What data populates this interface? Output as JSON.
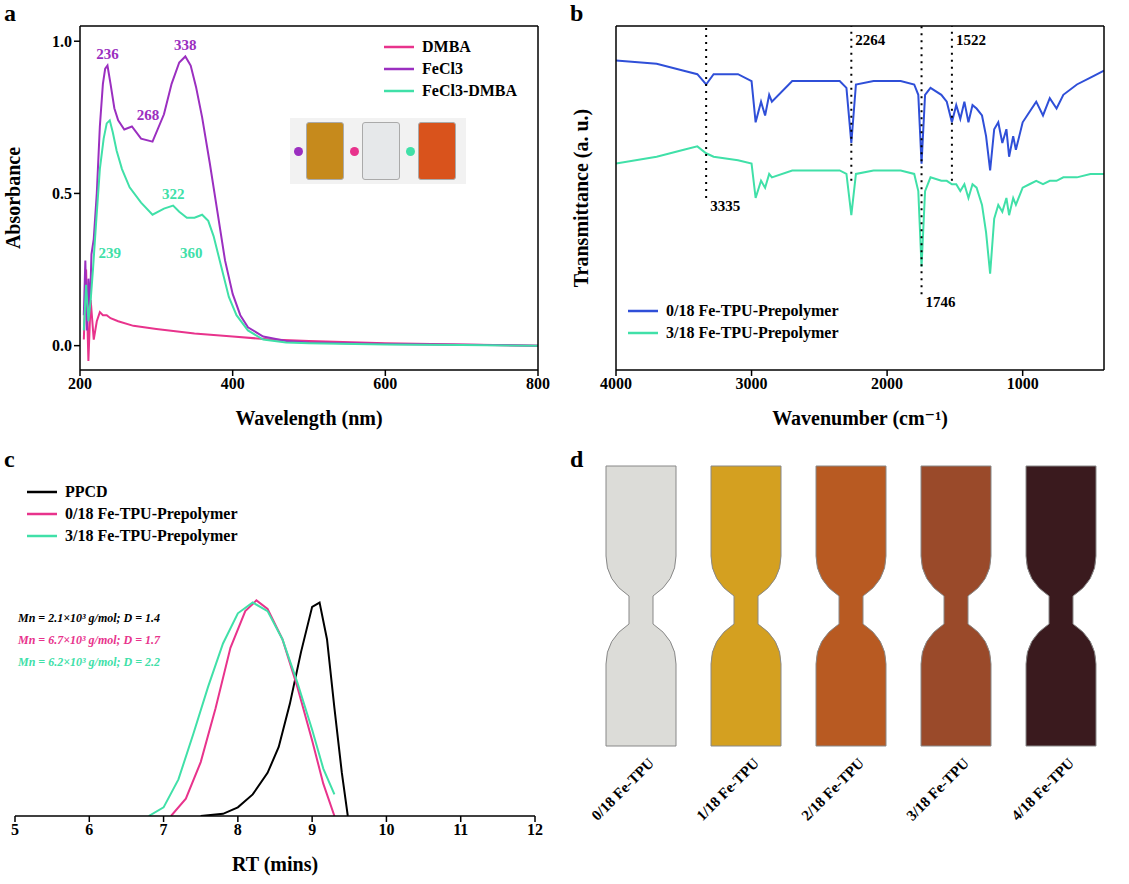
{
  "chart_data": [
    {
      "type": "line",
      "panel_label": "a",
      "x_label": "Wavelength (nm)",
      "y_label": "Absorbance",
      "xlim": [
        200,
        800
      ],
      "xticks": [
        200,
        400,
        600,
        800
      ],
      "ylim": [
        -0.08,
        1.05
      ],
      "yticks": [
        {
          "value": 0,
          "label": "0.0"
        },
        {
          "value": 0.5,
          "label": "0.5"
        },
        {
          "value": 1,
          "label": "1.0"
        }
      ],
      "legend": "upper right",
      "series": [
        {
          "name": "DMBA",
          "color": "#e8338c",
          "x": [
            205,
            208,
            211,
            214,
            218,
            222,
            226,
            230,
            235,
            240,
            250,
            270,
            300,
            350,
            400,
            450,
            500,
            600,
            700,
            800
          ],
          "values": [
            0.02,
            0.25,
            -0.05,
            0.15,
            0.02,
            0.08,
            0.11,
            0.1,
            0.1,
            0.09,
            0.08,
            0.065,
            0.055,
            0.04,
            0.03,
            0.02,
            0.015,
            0.008,
            0.004,
            0
          ]
        },
        {
          "name": "FeCl3",
          "color": "#9b2fc0",
          "x": [
            205,
            207,
            209,
            211,
            213,
            215,
            218,
            222,
            226,
            230,
            233,
            236,
            240,
            245,
            250,
            258,
            268,
            280,
            295,
            310,
            320,
            330,
            338,
            345,
            352,
            360,
            370,
            380,
            390,
            400,
            410,
            420,
            440,
            470,
            500,
            600,
            700,
            800
          ],
          "values": [
            0.1,
            0.28,
            0.05,
            0.22,
            0.12,
            0.3,
            0.35,
            0.5,
            0.72,
            0.86,
            0.91,
            0.92,
            0.86,
            0.78,
            0.74,
            0.71,
            0.72,
            0.68,
            0.67,
            0.76,
            0.86,
            0.93,
            0.95,
            0.92,
            0.85,
            0.75,
            0.6,
            0.44,
            0.28,
            0.17,
            0.1,
            0.06,
            0.03,
            0.015,
            0.01,
            0.005,
            0.003,
            0
          ]
        },
        {
          "name": "FeCl3-DMBA",
          "color": "#40e0a8",
          "x": [
            205,
            208,
            211,
            214,
            217,
            221,
            226,
            231,
            235,
            239,
            243,
            248,
            255,
            265,
            280,
            295,
            310,
            322,
            330,
            340,
            350,
            360,
            368,
            375,
            385,
            395,
            405,
            420,
            440,
            470,
            500,
            600,
            700,
            800
          ],
          "values": [
            0.05,
            0.2,
            0.08,
            0.15,
            0.25,
            0.4,
            0.58,
            0.68,
            0.73,
            0.74,
            0.7,
            0.64,
            0.58,
            0.52,
            0.47,
            0.43,
            0.45,
            0.46,
            0.44,
            0.42,
            0.42,
            0.43,
            0.41,
            0.36,
            0.26,
            0.16,
            0.1,
            0.05,
            0.02,
            0.01,
            0.008,
            0.004,
            0.002,
            0
          ]
        }
      ],
      "annotations": [
        {
          "text": "236",
          "x": 236,
          "y": 0.92,
          "series": "FeCl3"
        },
        {
          "text": "268",
          "x": 268,
          "y": 0.72,
          "series": "FeCl3"
        },
        {
          "text": "338",
          "x": 338,
          "y": 0.95,
          "series": "FeCl3"
        },
        {
          "text": "239",
          "x": 239,
          "y": 0.74,
          "series": "FeCl3-DMBA"
        },
        {
          "text": "322",
          "x": 322,
          "y": 0.46,
          "series": "FeCl3-DMBA"
        },
        {
          "text": "360",
          "x": 360,
          "y": 0.43,
          "series": "FeCl3-DMBA"
        }
      ]
    },
    {
      "type": "line",
      "panel_label": "b",
      "x_label": "Wavenumber (cm⁻¹)",
      "y_label": "Transmittance (a. u.)",
      "xlim": [
        4000,
        400
      ],
      "xticks": [
        4000,
        3000,
        2000,
        1000
      ],
      "ylim": [
        0,
        1
      ],
      "tick_labels": "x",
      "legend": "lower left",
      "series": [
        {
          "name": "0/18 Fe-TPU-Prepolymer",
          "color": "#2f4fd8",
          "x": [
            4000,
            3700,
            3500,
            3400,
            3335,
            3280,
            3100,
            3000,
            2970,
            2930,
            2900,
            2870,
            2850,
            2700,
            2500,
            2350,
            2300,
            2264,
            2230,
            2100,
            1900,
            1800,
            1770,
            1746,
            1720,
            1680,
            1600,
            1560,
            1522,
            1490,
            1460,
            1430,
            1400,
            1370,
            1340,
            1300,
            1270,
            1240,
            1210,
            1180,
            1150,
            1120,
            1100,
            1070,
            1050,
            1000,
            950,
            900,
            850,
            800,
            750,
            700,
            600,
            500,
            400
          ],
          "values": [
            0.9,
            0.89,
            0.87,
            0.86,
            0.83,
            0.86,
            0.86,
            0.84,
            0.72,
            0.78,
            0.74,
            0.8,
            0.78,
            0.84,
            0.84,
            0.84,
            0.82,
            0.66,
            0.83,
            0.84,
            0.84,
            0.83,
            0.8,
            0.6,
            0.8,
            0.82,
            0.8,
            0.78,
            0.72,
            0.77,
            0.73,
            0.78,
            0.72,
            0.77,
            0.76,
            0.74,
            0.68,
            0.58,
            0.7,
            0.72,
            0.66,
            0.7,
            0.62,
            0.68,
            0.64,
            0.72,
            0.75,
            0.78,
            0.74,
            0.79,
            0.76,
            0.8,
            0.83,
            0.85,
            0.87
          ]
        },
        {
          "name": "3/18 Fe-TPU-Prepolymer",
          "color": "#40e0a8",
          "x": [
            4000,
            3700,
            3500,
            3400,
            3335,
            3280,
            3100,
            3000,
            2970,
            2930,
            2900,
            2870,
            2850,
            2700,
            2500,
            2350,
            2300,
            2264,
            2230,
            2100,
            1900,
            1800,
            1770,
            1746,
            1720,
            1680,
            1600,
            1560,
            1522,
            1490,
            1460,
            1430,
            1400,
            1370,
            1340,
            1300,
            1270,
            1240,
            1210,
            1180,
            1150,
            1120,
            1100,
            1070,
            1050,
            1000,
            950,
            900,
            850,
            800,
            750,
            700,
            600,
            500,
            400
          ],
          "values": [
            0.6,
            0.62,
            0.64,
            0.65,
            0.63,
            0.62,
            0.61,
            0.6,
            0.5,
            0.55,
            0.53,
            0.57,
            0.56,
            0.58,
            0.58,
            0.58,
            0.57,
            0.45,
            0.57,
            0.58,
            0.58,
            0.57,
            0.52,
            0.3,
            0.52,
            0.56,
            0.55,
            0.55,
            0.54,
            0.54,
            0.52,
            0.54,
            0.5,
            0.54,
            0.53,
            0.48,
            0.4,
            0.28,
            0.44,
            0.48,
            0.46,
            0.5,
            0.45,
            0.5,
            0.48,
            0.53,
            0.54,
            0.55,
            0.54,
            0.55,
            0.55,
            0.56,
            0.56,
            0.57,
            0.57
          ]
        }
      ],
      "annotations": [
        {
          "text": "3335",
          "x": 3335
        },
        {
          "text": "2264",
          "x": 2264
        },
        {
          "text": "1746",
          "x": 1746
        },
        {
          "text": "1522",
          "x": 1522
        }
      ]
    },
    {
      "type": "line",
      "panel_label": "c",
      "x_label": "RT (mins)",
      "xlim": [
        5,
        12
      ],
      "xticks": [
        5,
        6,
        7,
        8,
        9,
        10,
        11,
        12
      ],
      "ylim": [
        0,
        1.6
      ],
      "tick_labels": "x",
      "legend": "upper left",
      "series": [
        {
          "name": "PPCD",
          "color": "#000000",
          "x": [
            7.5,
            7.8,
            8.0,
            8.2,
            8.4,
            8.55,
            8.7,
            8.85,
            9.0,
            9.1,
            9.2,
            9.3,
            9.4,
            9.48
          ],
          "values": [
            0,
            0.01,
            0.04,
            0.1,
            0.2,
            0.32,
            0.52,
            0.76,
            0.97,
            0.99,
            0.82,
            0.5,
            0.2,
            0
          ]
        },
        {
          "name": "0/18 Fe-TPU-Prepolymer",
          "color": "#e8338c",
          "x": [
            7.1,
            7.3,
            7.5,
            7.7,
            7.9,
            8.1,
            8.25,
            8.4,
            8.6,
            8.8,
            9.0,
            9.15,
            9.3
          ],
          "values": [
            0,
            0.08,
            0.25,
            0.5,
            0.78,
            0.95,
            1.0,
            0.96,
            0.82,
            0.6,
            0.35,
            0.15,
            0
          ]
        },
        {
          "name": "3/18 Fe-TPU-Prepolymer",
          "color": "#40e0a8",
          "x": [
            6.8,
            7.0,
            7.2,
            7.4,
            7.6,
            7.8,
            8.0,
            8.2,
            8.4,
            8.6,
            8.8,
            9.0,
            9.15,
            9.3
          ],
          "values": [
            0,
            0.04,
            0.17,
            0.38,
            0.6,
            0.8,
            0.94,
            0.99,
            0.95,
            0.82,
            0.62,
            0.4,
            0.22,
            0.1
          ]
        }
      ],
      "annotations": [
        "Mn = 2.1×10³ g/mol; D = 1.4",
        "Mn = 6.7×10³ g/mol; D = 1.7",
        "Mn = 6.2×10³ g/mol; D = 2.2"
      ]
    },
    {
      "type": "photo",
      "panel_label": "d",
      "categories": [
        "0/18 Fe-TPU",
        "1/18 Fe-TPU",
        "2/18 Fe-TPU",
        "3/18 Fe-TPU",
        "4/18 Fe-TPU"
      ],
      "colors": [
        "#dcdcd8",
        "#d4a020",
        "#b85a22",
        "#9a4a2a",
        "#3a1a1e"
      ]
    }
  ]
}
